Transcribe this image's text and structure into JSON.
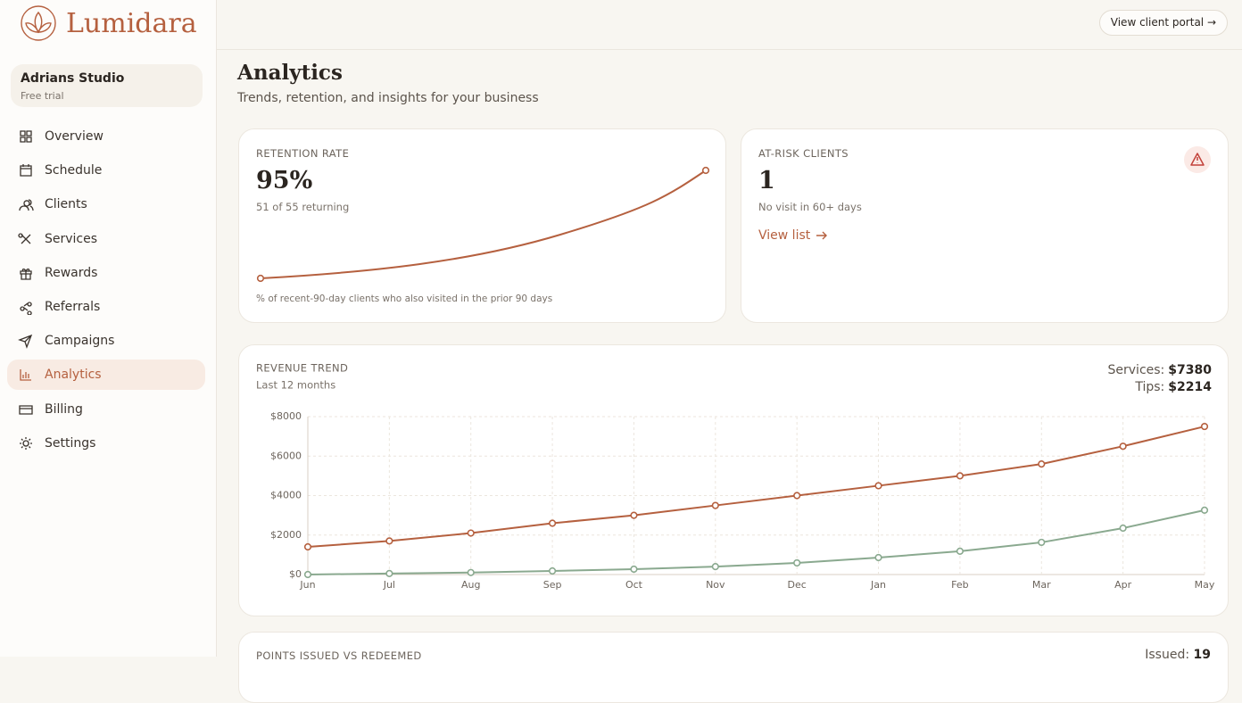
{
  "brand": "Lumidara",
  "header": {
    "portal_button": "View client portal →"
  },
  "sidebar": {
    "studio": "Adrians Studio",
    "plan": "Free trial",
    "nav": [
      "Overview",
      "Schedule",
      "Clients",
      "Services",
      "Rewards",
      "Referrals",
      "Campaigns",
      "Analytics",
      "Billing",
      "Settings"
    ]
  },
  "page": {
    "title": "Analytics",
    "subtitle": "Trends, retention, and insights for your business"
  },
  "retention": {
    "label": "RETENTION RATE",
    "value": "95%",
    "detail": "51 of 55 returning",
    "footnote": "% of recent-90-day clients who also visited in the prior 90 days"
  },
  "at_risk": {
    "label": "AT-RISK CLIENTS",
    "value": "1",
    "detail": "No visit in 60+ days",
    "link": "View list"
  },
  "points": {
    "label": "POINTS ISSUED VS REDEEMED",
    "issued_label": "Issued:",
    "issued_value": "19"
  },
  "chart_data": {
    "type": "line",
    "title": "REVENUE TREND",
    "subtitle": "Last 12 months",
    "summary": [
      {
        "label": "Services:",
        "value": "$7380"
      },
      {
        "label": "Tips:",
        "value": "$2214"
      }
    ],
    "categories": [
      "Jun",
      "Jul",
      "Aug",
      "Sep",
      "Oct",
      "Nov",
      "Dec",
      "Jan",
      "Feb",
      "Mar",
      "Apr",
      "May"
    ],
    "series": [
      {
        "name": "Services",
        "color": "#b5603f",
        "values": [
          1400,
          1700,
          2100,
          2600,
          3000,
          3500,
          4000,
          4500,
          5000,
          5600,
          6500,
          7500
        ]
      },
      {
        "name": "Tips",
        "color": "#8aa98f",
        "values": [
          0,
          50,
          100,
          180,
          270,
          400,
          590,
          860,
          1180,
          1630,
          2350,
          3260
        ]
      }
    ],
    "ylim": [
      0,
      8000
    ],
    "yticks": [
      {
        "value": 0,
        "label": "$0"
      },
      {
        "value": 2000,
        "label": "$2000"
      },
      {
        "value": 4000,
        "label": "$4000"
      },
      {
        "value": 6000,
        "label": "$6000"
      },
      {
        "value": 8000,
        "label": "$8000"
      }
    ],
    "grid": true
  }
}
